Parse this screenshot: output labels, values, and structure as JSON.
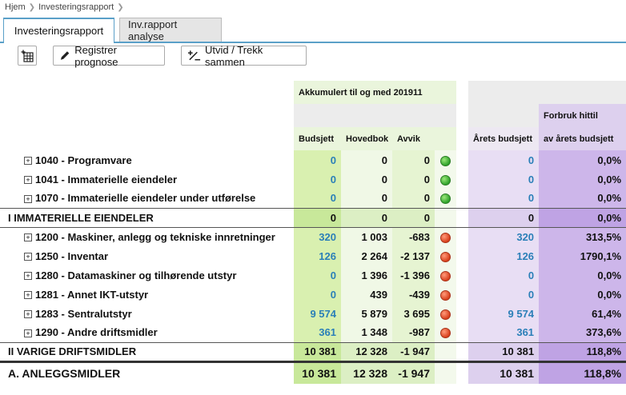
{
  "breadcrumb": {
    "home": "Hjem",
    "current": "Investeringsrapport"
  },
  "tabs": [
    {
      "label": "Investeringsrapport",
      "active": true
    },
    {
      "label": "Inv.rapport analyse",
      "active": false
    }
  ],
  "toolbar": {
    "register_label": "Registrer prognose",
    "expand_label": "Utvid / Trekk sammen"
  },
  "header": {
    "period": "Akkumulert til og med 201911",
    "col_budget": "Budsjett",
    "col_ledger": "Hovedbok",
    "col_deviation": "Avvik",
    "col_annual_budget": "Årets budsjett",
    "col_usage_line1": "Forbruk hittil",
    "col_usage_line2": "av årets budsjett"
  },
  "rows": [
    {
      "label": "1040 - Programvare",
      "budget": "0",
      "ledger": "0",
      "deviation": "0",
      "status": "green",
      "annual": "0",
      "pct": "0,0%"
    },
    {
      "label": "1041 - Immaterielle eiendeler",
      "budget": "0",
      "ledger": "0",
      "deviation": "0",
      "status": "green",
      "annual": "0",
      "pct": "0,0%"
    },
    {
      "label": "1070 - Immaterielle eiendeler under utførelse",
      "budget": "0",
      "ledger": "0",
      "deviation": "0",
      "status": "green",
      "annual": "0",
      "pct": "0,0%"
    },
    {
      "label": "I IMMATERIELLE EIENDELER",
      "budget": "0",
      "ledger": "0",
      "deviation": "0",
      "annual": "0",
      "pct": "0,0%"
    },
    {
      "label": "1200 - Maskiner, anlegg og tekniske innretninger",
      "budget": "320",
      "ledger": "1 003",
      "deviation": "-683",
      "status": "red",
      "annual": "320",
      "pct": "313,5%"
    },
    {
      "label": "1250 - Inventar",
      "budget": "126",
      "ledger": "2 264",
      "deviation": "-2 137",
      "status": "red",
      "annual": "126",
      "pct": "1790,1%"
    },
    {
      "label": "1280 - Datamaskiner og tilhørende utstyr",
      "budget": "0",
      "ledger": "1 396",
      "deviation": "-1 396",
      "status": "red",
      "annual": "0",
      "pct": "0,0%"
    },
    {
      "label": "1281 - Annet IKT-utstyr",
      "budget": "0",
      "ledger": "439",
      "deviation": "-439",
      "status": "red",
      "annual": "0",
      "pct": "0,0%"
    },
    {
      "label": "1283 - Sentralutstyr",
      "budget": "9 574",
      "ledger": "5 879",
      "deviation": "3 695",
      "status": "red",
      "annual": "9 574",
      "pct": "61,4%"
    },
    {
      "label": "1290 - Andre driftsmidler",
      "budget": "361",
      "ledger": "1 348",
      "deviation": "-987",
      "status": "red",
      "annual": "361",
      "pct": "373,6%"
    },
    {
      "label": "II VARIGE DRIFTSMIDLER",
      "budget": "10 381",
      "ledger": "12 328",
      "deviation": "-1 947",
      "annual": "10 381",
      "pct": "118,8%"
    },
    {
      "label": "A. ANLEGGSMIDLER",
      "budget": "10 381",
      "ledger": "12 328",
      "deviation": "-1 947",
      "annual": "10 381",
      "pct": "118,8%"
    }
  ],
  "icons": {
    "grid_add": "table-add-icon",
    "pencil": "pencil-icon",
    "expand": "expand-collapse-icon"
  }
}
